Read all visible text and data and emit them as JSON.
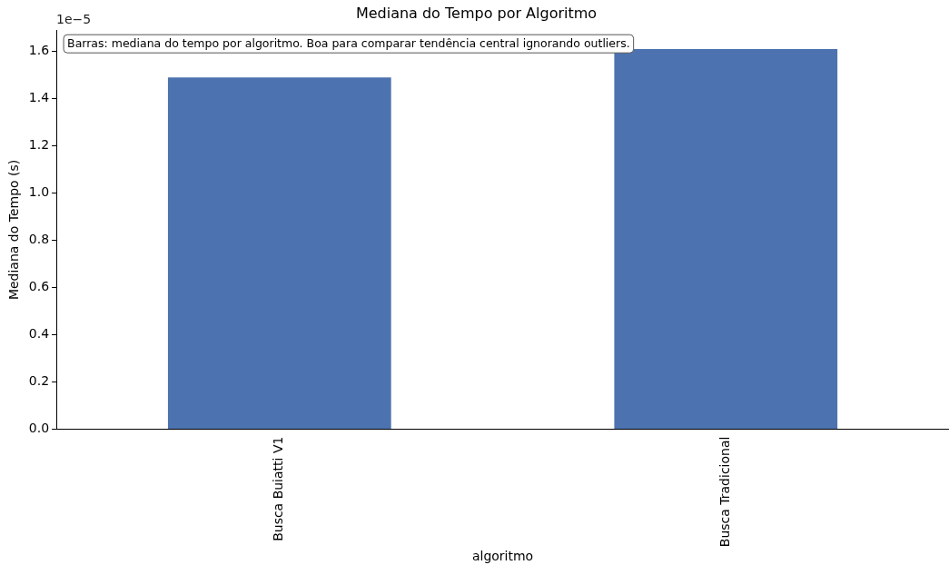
{
  "chart_data": {
    "type": "bar",
    "title": "Mediana do Tempo por Algoritmo",
    "xlabel": "algoritmo",
    "ylabel": "Mediana do Tempo (s)",
    "categories": [
      "Busca Buiatti V1",
      "Busca Tradicional"
    ],
    "values": [
      1.49,
      1.61
    ],
    "color": "#4c72b0",
    "ylim": [
      0,
      1.69
    ],
    "yticks": [
      {
        "value": 0,
        "label": "0.0"
      },
      {
        "value": 0.2,
        "label": "0.2"
      },
      {
        "value": 0.4,
        "label": "0.4"
      },
      {
        "value": 0.6,
        "label": "0.6"
      },
      {
        "value": 0.8,
        "label": "0.8"
      },
      {
        "value": 1.0,
        "label": "1.0"
      },
      {
        "value": 1.2,
        "label": "1.2"
      },
      {
        "value": 1.4,
        "label": "1.4"
      },
      {
        "value": 1.6,
        "label": "1.6"
      }
    ],
    "annotations": [
      "1e−5",
      "Barras: mediana do tempo por algoritmo. Boa para comparar tendência central ignorando outliers."
    ],
    "grid": false,
    "legend": false
  }
}
